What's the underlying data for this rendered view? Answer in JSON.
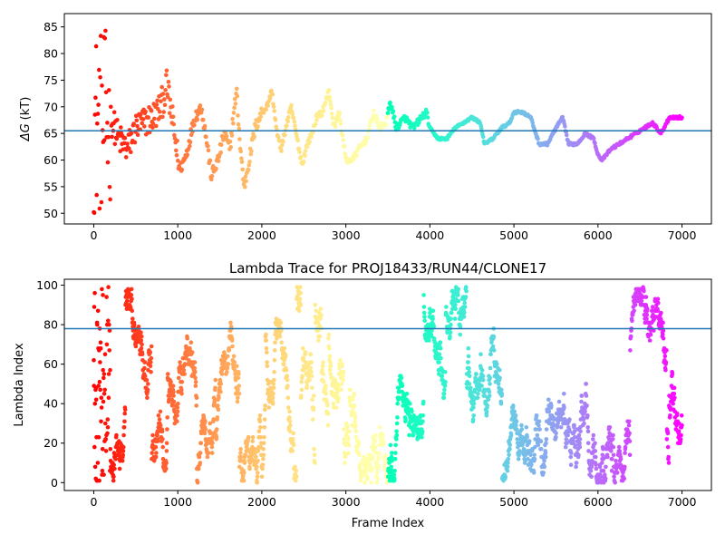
{
  "chart_data": [
    {
      "type": "scatter",
      "title": "",
      "xlabel": "",
      "ylabel": "ΔG (kT)",
      "ylabel_symbol": "ΔG",
      "ylabel_unit": "(kT)",
      "xlim": [
        -350,
        7350
      ],
      "ylim": [
        48.0,
        87.5
      ],
      "xticks": [
        0,
        1000,
        2000,
        3000,
        4000,
        5000,
        6000,
        7000
      ],
      "yticks": [
        50,
        55,
        60,
        65,
        70,
        75,
        80,
        85
      ],
      "hline": 65.5,
      "hline_color": "#1f77b4",
      "colormap": "rainbow (red at frame 0 → violet at frame 7000)",
      "grid": false,
      "legend": "none",
      "trace_keypoints": [
        [
          0,
          67
        ],
        [
          60,
          70
        ],
        [
          120,
          72
        ],
        [
          200,
          68
        ],
        [
          300,
          64
        ],
        [
          400,
          62
        ],
        [
          500,
          66
        ],
        [
          600,
          67
        ],
        [
          700,
          68
        ],
        [
          800,
          70
        ],
        [
          870,
          74
        ],
        [
          950,
          66
        ],
        [
          1020,
          58
        ],
        [
          1100,
          61
        ],
        [
          1200,
          68
        ],
        [
          1280,
          70
        ],
        [
          1350,
          63
        ],
        [
          1400,
          57
        ],
        [
          1480,
          60
        ],
        [
          1550,
          65
        ],
        [
          1620,
          62
        ],
        [
          1660,
          68
        ],
        [
          1700,
          73
        ],
        [
          1740,
          63
        ],
        [
          1790,
          55
        ],
        [
          1850,
          60
        ],
        [
          1920,
          66
        ],
        [
          2000,
          69
        ],
        [
          2060,
          70
        ],
        [
          2120,
          73
        ],
        [
          2180,
          65
        ],
        [
          2230,
          62
        ],
        [
          2300,
          67
        ],
        [
          2350,
          70
        ],
        [
          2420,
          64
        ],
        [
          2480,
          59
        ],
        [
          2540,
          63
        ],
        [
          2600,
          65
        ],
        [
          2650,
          68
        ],
        [
          2720,
          69
        ],
        [
          2800,
          73
        ],
        [
          2860,
          66
        ],
        [
          2920,
          69
        ],
        [
          3000,
          60
        ],
        [
          3080,
          60
        ],
        [
          3150,
          62
        ],
        [
          3250,
          64
        ],
        [
          3330,
          69
        ],
        [
          3400,
          66
        ],
        [
          3480,
          67
        ],
        [
          3530,
          71
        ],
        [
          3600,
          66
        ],
        [
          3700,
          68
        ],
        [
          3800,
          66
        ],
        [
          3900,
          68
        ],
        [
          3960,
          69
        ],
        [
          4000,
          66
        ],
        [
          4100,
          64
        ],
        [
          4200,
          64
        ],
        [
          4300,
          66
        ],
        [
          4400,
          67
        ],
        [
          4500,
          68
        ],
        [
          4600,
          67
        ],
        [
          4650,
          63
        ],
        [
          4750,
          64
        ],
        [
          4850,
          66
        ],
        [
          4950,
          67
        ],
        [
          5000,
          69
        ],
        [
          5100,
          69
        ],
        [
          5200,
          68
        ],
        [
          5300,
          63
        ],
        [
          5400,
          63
        ],
        [
          5500,
          66
        ],
        [
          5580,
          68
        ],
        [
          5650,
          63
        ],
        [
          5750,
          63
        ],
        [
          5850,
          65
        ],
        [
          5950,
          64
        ],
        [
          6000,
          61
        ],
        [
          6050,
          60
        ],
        [
          6150,
          62
        ],
        [
          6250,
          63
        ],
        [
          6350,
          64
        ],
        [
          6450,
          65
        ],
        [
          6550,
          66
        ],
        [
          6650,
          67
        ],
        [
          6750,
          65
        ],
        [
          6850,
          68
        ],
        [
          7000,
          68
        ]
      ],
      "early_scatter_range": {
        "x_max": 200,
        "y_range": [
          49.5,
          84.5
        ]
      }
    },
    {
      "type": "scatter",
      "title": "Lambda Trace for PROJ18433/RUN44/CLONE17",
      "xlabel": "Frame Index",
      "ylabel": "Lambda Index",
      "xlim": [
        -350,
        7350
      ],
      "ylim": [
        -4,
        103
      ],
      "xticks": [
        0,
        1000,
        2000,
        3000,
        4000,
        5000,
        6000,
        7000
      ],
      "yticks": [
        0,
        20,
        40,
        60,
        80,
        100
      ],
      "hline": 78,
      "hline_color": "#1f77b4",
      "colormap": "rainbow (red at frame 0 → violet at frame 7000)",
      "grid": false,
      "legend": "none",
      "value_range": [
        0,
        99
      ],
      "frame_range": [
        0,
        7000
      ]
    }
  ]
}
